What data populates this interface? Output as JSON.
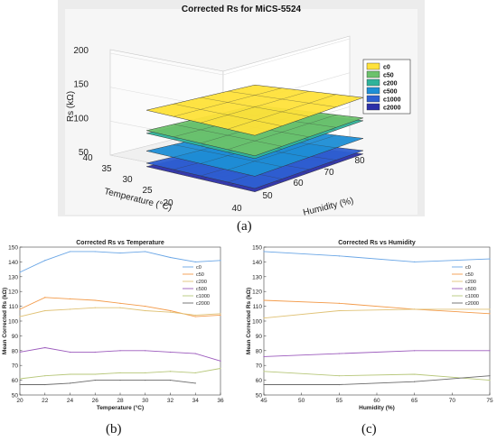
{
  "captions": {
    "a": "(a)",
    "b": "(b)",
    "c": "(c)"
  },
  "colors": {
    "c0": "#ffe23a",
    "c50": "#6cc26c",
    "c200": "#2fb39a",
    "c500": "#1e8fd6",
    "c1000": "#2e5fd2",
    "c2000": "#2b2fa8",
    "line_c0": "#6aa6e6",
    "line_c50": "#f39b4a",
    "line_c200": "#e0c276",
    "line_c500": "#9c5bbd",
    "line_c1000": "#b7c77a",
    "line_c2000": "#6a6a6a",
    "panel_a_bg": "#ececec",
    "panel_a_frame": "#f6f6f6"
  },
  "chart_data": [
    {
      "type": "surface3d",
      "title": "Corrected Rs for MiCS-5524",
      "zlabel": "Rs (kΩ)",
      "xlabel": "Temperature (°C)",
      "ylabel": "Humidity (%)",
      "z_ticks": [
        "50",
        "100",
        "150",
        "200"
      ],
      "temp_ticks": [
        "20",
        "25",
        "30",
        "35",
        "40"
      ],
      "hum_ticks": [
        "40",
        "50",
        "60",
        "70",
        "80"
      ],
      "legend": [
        "c0",
        "c50",
        "c200",
        "c500",
        "c1000",
        "c2000"
      ],
      "legend_position": "top-right",
      "surfaces": [
        {
          "name": "c0",
          "level": 140
        },
        {
          "name": "c50",
          "level": 110
        },
        {
          "name": "c200",
          "level": 106
        },
        {
          "name": "c500",
          "level": 80
        },
        {
          "name": "c1000",
          "level": 62
        },
        {
          "name": "c2000",
          "level": 57
        }
      ]
    },
    {
      "type": "line",
      "title": "Corrected Rs vs Temperature",
      "xlabel": "Temperature (°C)",
      "ylabel": "Mean Corrected Rs (kΩ)",
      "xlim": [
        20,
        36
      ],
      "ylim": [
        50,
        150
      ],
      "x_ticks": [
        20,
        22,
        24,
        26,
        28,
        30,
        32,
        34,
        36
      ],
      "y_ticks": [
        50,
        60,
        70,
        80,
        90,
        100,
        110,
        120,
        130,
        140,
        150
      ],
      "legend_position": "right",
      "series": [
        {
          "name": "c0",
          "x": [
            20,
            22,
            24,
            26,
            28,
            30,
            32,
            34,
            36
          ],
          "values": [
            133,
            141,
            147,
            147,
            146,
            147,
            143,
            140,
            141
          ]
        },
        {
          "name": "c50",
          "x": [
            20,
            22,
            24,
            26,
            28,
            30,
            32,
            34,
            36
          ],
          "values": [
            108,
            116,
            115,
            114,
            112,
            110,
            107,
            103,
            104
          ]
        },
        {
          "name": "c200",
          "x": [
            20,
            22,
            24,
            26,
            28,
            30,
            32,
            34,
            36
          ],
          "values": [
            103,
            107,
            108,
            109,
            109,
            107,
            106,
            104,
            105
          ]
        },
        {
          "name": "c500",
          "x": [
            20,
            22,
            24,
            26,
            28,
            30,
            32,
            34,
            36
          ],
          "values": [
            79,
            82,
            79,
            79,
            80,
            80,
            79,
            78,
            73
          ]
        },
        {
          "name": "c1000",
          "x": [
            20,
            22,
            24,
            26,
            28,
            30,
            32,
            34,
            36
          ],
          "values": [
            61,
            63,
            64,
            64,
            65,
            65,
            66,
            65,
            68
          ]
        },
        {
          "name": "c2000",
          "x": [
            20,
            22,
            24,
            26,
            28,
            30,
            32,
            34
          ],
          "values": [
            57,
            57,
            58,
            60,
            60,
            60,
            60,
            58
          ]
        }
      ]
    },
    {
      "type": "line",
      "title": "Corrected Rs vs Humidity",
      "xlabel": "Humidity (%)",
      "ylabel": "Mean Corrected Rs (kΩ)",
      "xlim": [
        45,
        75
      ],
      "ylim": [
        50,
        150
      ],
      "x_ticks": [
        45,
        50,
        55,
        60,
        65,
        70,
        75
      ],
      "y_ticks": [
        50,
        60,
        70,
        80,
        90,
        100,
        110,
        120,
        130,
        140,
        150
      ],
      "legend_position": "right",
      "series": [
        {
          "name": "c0",
          "x": [
            45,
            55,
            65,
            75
          ],
          "values": [
            147,
            144,
            140,
            142
          ]
        },
        {
          "name": "c50",
          "x": [
            45,
            55,
            65,
            75
          ],
          "values": [
            114,
            112,
            108,
            105
          ]
        },
        {
          "name": "c200",
          "x": [
            45,
            55,
            65,
            75
          ],
          "values": [
            102,
            107,
            108,
            108
          ]
        },
        {
          "name": "c500",
          "x": [
            45,
            55,
            65,
            75
          ],
          "values": [
            76,
            78,
            80,
            80
          ]
        },
        {
          "name": "c1000",
          "x": [
            45,
            55,
            65,
            75
          ],
          "values": [
            66,
            63,
            64,
            60
          ]
        },
        {
          "name": "c2000",
          "x": [
            45,
            55,
            65,
            75
          ],
          "values": [
            57,
            57,
            59,
            63
          ]
        }
      ]
    }
  ]
}
